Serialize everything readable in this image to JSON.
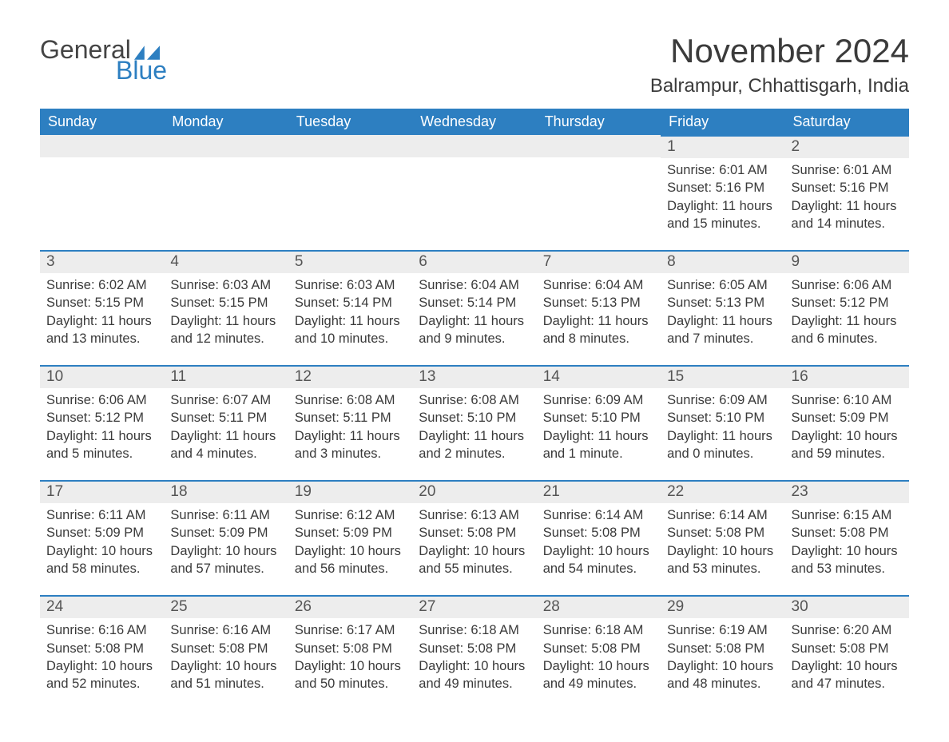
{
  "brand": {
    "part1": "General",
    "part2": "Blue",
    "text_color": "#444444",
    "accent_color": "#2d7fc1"
  },
  "title": "November 2024",
  "location": "Balrampur, Chhattisgarh, India",
  "colors": {
    "header_bg": "#2d7fc1",
    "header_text": "#ffffff",
    "datebar_bg": "#ededed",
    "datebar_border": "#2d7fc1",
    "body_text": "#3a3a3a",
    "page_bg": "#ffffff"
  },
  "fonts": {
    "title_size_pt": 32,
    "location_size_pt": 18,
    "header_size_pt": 14,
    "body_size_pt": 12
  },
  "weekdays": [
    "Sunday",
    "Monday",
    "Tuesday",
    "Wednesday",
    "Thursday",
    "Friday",
    "Saturday"
  ],
  "labels": {
    "sunrise": "Sunrise:",
    "sunset": "Sunset:",
    "daylight": "Daylight:"
  },
  "weeks": [
    [
      {
        "blank": true
      },
      {
        "blank": true
      },
      {
        "blank": true
      },
      {
        "blank": true
      },
      {
        "blank": true
      },
      {
        "date": "1",
        "sunrise": "6:01 AM",
        "sunset": "5:16 PM",
        "daylight": "11 hours and 15 minutes."
      },
      {
        "date": "2",
        "sunrise": "6:01 AM",
        "sunset": "5:16 PM",
        "daylight": "11 hours and 14 minutes."
      }
    ],
    [
      {
        "date": "3",
        "sunrise": "6:02 AM",
        "sunset": "5:15 PM",
        "daylight": "11 hours and 13 minutes."
      },
      {
        "date": "4",
        "sunrise": "6:03 AM",
        "sunset": "5:15 PM",
        "daylight": "11 hours and 12 minutes."
      },
      {
        "date": "5",
        "sunrise": "6:03 AM",
        "sunset": "5:14 PM",
        "daylight": "11 hours and 10 minutes."
      },
      {
        "date": "6",
        "sunrise": "6:04 AM",
        "sunset": "5:14 PM",
        "daylight": "11 hours and 9 minutes."
      },
      {
        "date": "7",
        "sunrise": "6:04 AM",
        "sunset": "5:13 PM",
        "daylight": "11 hours and 8 minutes."
      },
      {
        "date": "8",
        "sunrise": "6:05 AM",
        "sunset": "5:13 PM",
        "daylight": "11 hours and 7 minutes."
      },
      {
        "date": "9",
        "sunrise": "6:06 AM",
        "sunset": "5:12 PM",
        "daylight": "11 hours and 6 minutes."
      }
    ],
    [
      {
        "date": "10",
        "sunrise": "6:06 AM",
        "sunset": "5:12 PM",
        "daylight": "11 hours and 5 minutes."
      },
      {
        "date": "11",
        "sunrise": "6:07 AM",
        "sunset": "5:11 PM",
        "daylight": "11 hours and 4 minutes."
      },
      {
        "date": "12",
        "sunrise": "6:08 AM",
        "sunset": "5:11 PM",
        "daylight": "11 hours and 3 minutes."
      },
      {
        "date": "13",
        "sunrise": "6:08 AM",
        "sunset": "5:10 PM",
        "daylight": "11 hours and 2 minutes."
      },
      {
        "date": "14",
        "sunrise": "6:09 AM",
        "sunset": "5:10 PM",
        "daylight": "11 hours and 1 minute."
      },
      {
        "date": "15",
        "sunrise": "6:09 AM",
        "sunset": "5:10 PM",
        "daylight": "11 hours and 0 minutes."
      },
      {
        "date": "16",
        "sunrise": "6:10 AM",
        "sunset": "5:09 PM",
        "daylight": "10 hours and 59 minutes."
      }
    ],
    [
      {
        "date": "17",
        "sunrise": "6:11 AM",
        "sunset": "5:09 PM",
        "daylight": "10 hours and 58 minutes."
      },
      {
        "date": "18",
        "sunrise": "6:11 AM",
        "sunset": "5:09 PM",
        "daylight": "10 hours and 57 minutes."
      },
      {
        "date": "19",
        "sunrise": "6:12 AM",
        "sunset": "5:09 PM",
        "daylight": "10 hours and 56 minutes."
      },
      {
        "date": "20",
        "sunrise": "6:13 AM",
        "sunset": "5:08 PM",
        "daylight": "10 hours and 55 minutes."
      },
      {
        "date": "21",
        "sunrise": "6:14 AM",
        "sunset": "5:08 PM",
        "daylight": "10 hours and 54 minutes."
      },
      {
        "date": "22",
        "sunrise": "6:14 AM",
        "sunset": "5:08 PM",
        "daylight": "10 hours and 53 minutes."
      },
      {
        "date": "23",
        "sunrise": "6:15 AM",
        "sunset": "5:08 PM",
        "daylight": "10 hours and 53 minutes."
      }
    ],
    [
      {
        "date": "24",
        "sunrise": "6:16 AM",
        "sunset": "5:08 PM",
        "daylight": "10 hours and 52 minutes."
      },
      {
        "date": "25",
        "sunrise": "6:16 AM",
        "sunset": "5:08 PM",
        "daylight": "10 hours and 51 minutes."
      },
      {
        "date": "26",
        "sunrise": "6:17 AM",
        "sunset": "5:08 PM",
        "daylight": "10 hours and 50 minutes."
      },
      {
        "date": "27",
        "sunrise": "6:18 AM",
        "sunset": "5:08 PM",
        "daylight": "10 hours and 49 minutes."
      },
      {
        "date": "28",
        "sunrise": "6:18 AM",
        "sunset": "5:08 PM",
        "daylight": "10 hours and 49 minutes."
      },
      {
        "date": "29",
        "sunrise": "6:19 AM",
        "sunset": "5:08 PM",
        "daylight": "10 hours and 48 minutes."
      },
      {
        "date": "30",
        "sunrise": "6:20 AM",
        "sunset": "5:08 PM",
        "daylight": "10 hours and 47 minutes."
      }
    ]
  ]
}
